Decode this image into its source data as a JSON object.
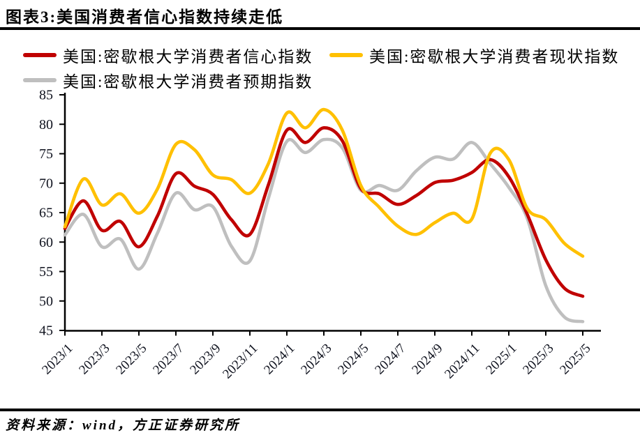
{
  "header": {
    "title": "图表3:美国消费者信心指数持续走低"
  },
  "footer": {
    "source": "资料来源：wind，方正证券研究所"
  },
  "colors": {
    "sentiment_red": "#C00000",
    "current_yellow": "#FFC000",
    "expectations_gray": "#BFBFBF",
    "axis": "#000000",
    "tick_label": "#10131f"
  },
  "chart_data": {
    "type": "line",
    "title": "图表3:美国消费者信心指数持续走低",
    "xlabel": "",
    "ylabel": "",
    "ylim": [
      45,
      85
    ],
    "y_ticks": [
      45,
      50,
      55,
      60,
      65,
      70,
      75,
      80,
      85
    ],
    "grid": false,
    "line_style": "smoothed spline, no markers",
    "legend_position": "top-left, two rows",
    "x": [
      "2023/1",
      "2023/2",
      "2023/3",
      "2023/4",
      "2023/5",
      "2023/6",
      "2023/7",
      "2023/8",
      "2023/9",
      "2023/10",
      "2023/11",
      "2023/12",
      "2024/1",
      "2024/2",
      "2024/3",
      "2024/4",
      "2024/5",
      "2024/6",
      "2024/7",
      "2024/8",
      "2024/9",
      "2024/10",
      "2024/11",
      "2024/12",
      "2025/1",
      "2025/2",
      "2025/3",
      "2025/4",
      "2025/5"
    ],
    "x_tick_labels": [
      "2023/1",
      "2023/3",
      "2023/5",
      "2023/7",
      "2023/9",
      "2023/11",
      "2024/1",
      "2024/3",
      "2024/5",
      "2024/7",
      "2024/9",
      "2024/11",
      "2025/1",
      "2025/3",
      "2025/5"
    ],
    "series": [
      {
        "name": "美国:密歇根大学消费者信心指数",
        "key": "sentiment",
        "color": "#C00000",
        "values": [
          62.3,
          67.0,
          62.0,
          63.5,
          59.2,
          64.4,
          71.6,
          69.5,
          68.1,
          63.8,
          61.3,
          69.7,
          79.0,
          76.9,
          79.4,
          77.2,
          69.1,
          68.2,
          66.4,
          67.9,
          70.1,
          70.5,
          71.8,
          74.0,
          71.1,
          64.7,
          57.0,
          52.2,
          50.8
        ]
      },
      {
        "name": "美国:密歇根大学消费者现状指数",
        "key": "current",
        "color": "#FFC000",
        "values": [
          62.6,
          70.7,
          66.3,
          68.2,
          64.9,
          69.0,
          76.6,
          75.7,
          71.4,
          70.6,
          68.3,
          73.3,
          81.9,
          79.4,
          82.5,
          79.0,
          69.6,
          65.9,
          62.7,
          61.3,
          63.3,
          64.9,
          63.9,
          75.1,
          74.0,
          65.7,
          63.8,
          59.8,
          57.6
        ]
      },
      {
        "name": "美国:密歇根大学消费者预期指数",
        "key": "expectations",
        "color": "#BFBFBF",
        "values": [
          61.2,
          64.7,
          59.2,
          60.5,
          55.4,
          61.5,
          68.3,
          65.5,
          66.0,
          59.3,
          56.8,
          67.4,
          77.1,
          75.2,
          77.4,
          76.0,
          68.8,
          69.6,
          68.8,
          72.1,
          74.4,
          74.1,
          76.9,
          73.3,
          69.3,
          64.0,
          52.6,
          47.3,
          46.5
        ]
      }
    ]
  }
}
